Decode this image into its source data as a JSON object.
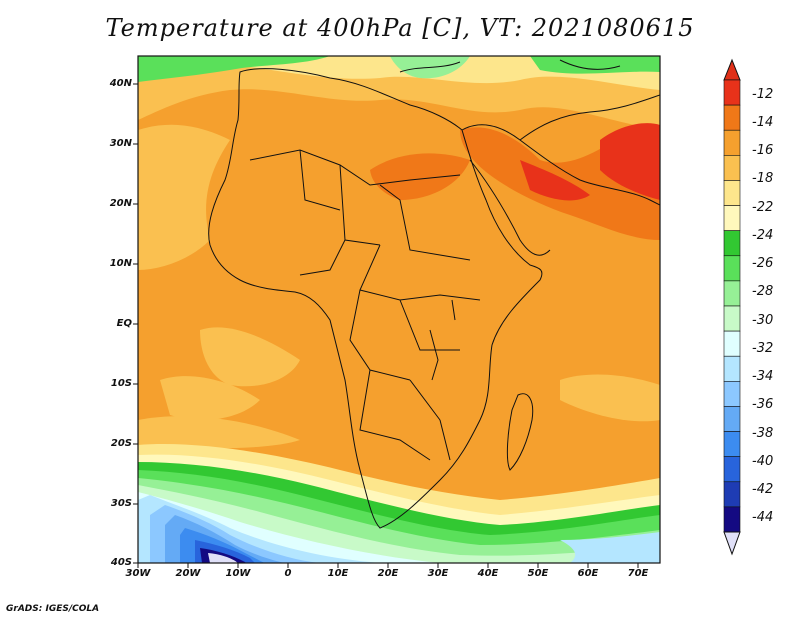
{
  "title": "Temperature at 400hPa [C], VT: 2021080615",
  "credit": "GrADS: IGES/COLA",
  "map": {
    "y_ticks": [
      "40N",
      "30N",
      "20N",
      "10N",
      "EQ",
      "10S",
      "20S",
      "30S",
      "40S"
    ],
    "x_ticks": [
      "30W",
      "20W",
      "10W",
      "0",
      "10E",
      "20E",
      "30E",
      "40E",
      "50E",
      "60E",
      "70E"
    ]
  },
  "colorbar": {
    "labels": [
      "-12",
      "-14",
      "-16",
      "-18",
      "-22",
      "-24",
      "-26",
      "-28",
      "-30",
      "-32",
      "-34",
      "-36",
      "-38",
      "-40",
      "-42",
      "-44"
    ],
    "colors": [
      "#e8321a",
      "#f07818",
      "#f5a02e",
      "#fac050",
      "#fde68c",
      "#fff8bc",
      "#32c832",
      "#5ae05a",
      "#96f096",
      "#c8fac8",
      "#e0ffff",
      "#b4e6ff",
      "#8cc8ff",
      "#64aaf5",
      "#3c8cf0",
      "#2864dc",
      "#1e3cb4",
      "#140a82"
    ],
    "over_color": "#e03018",
    "under_color": "#e0e0f8"
  }
}
